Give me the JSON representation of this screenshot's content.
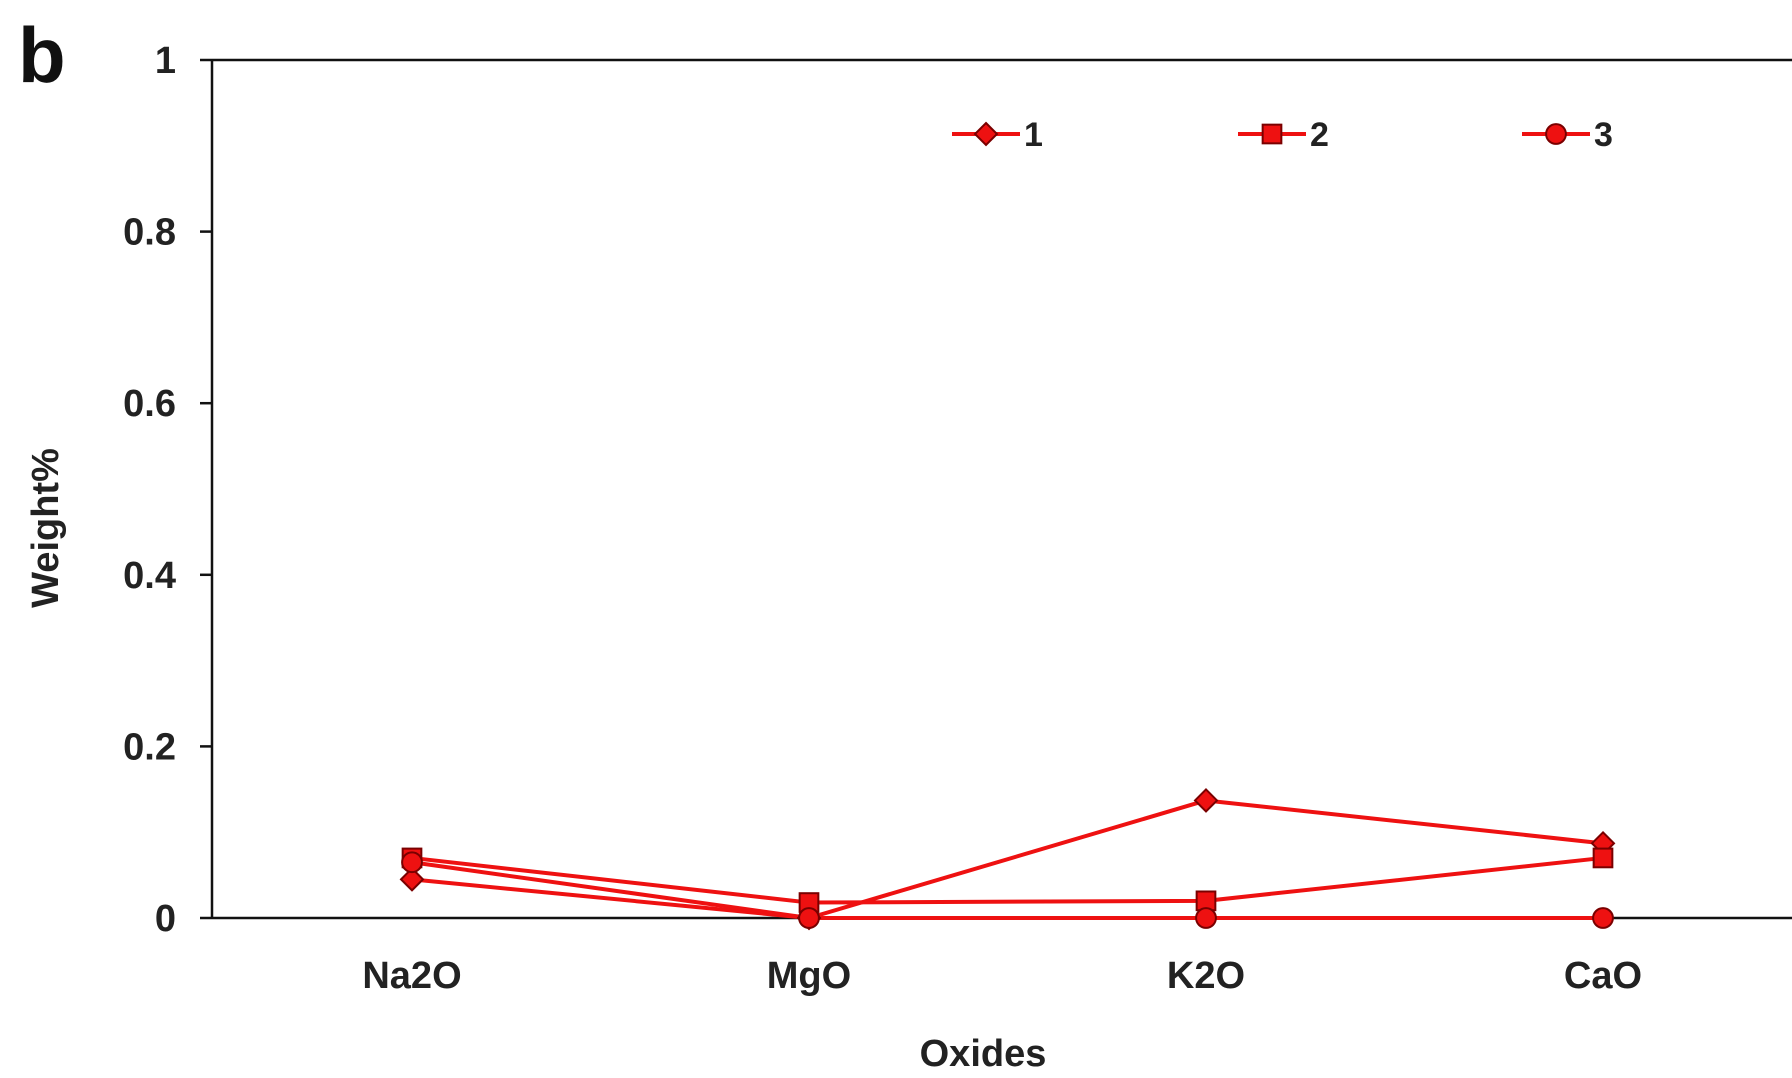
{
  "panel_label": "b",
  "colors": {
    "line": "#ee1111",
    "marker_fill": "#ee1111",
    "marker_stroke": "#7a0000",
    "axis": "#111111",
    "text": "#222222"
  },
  "chart_data": {
    "type": "line",
    "title": "",
    "xlabel": "Oxides",
    "ylabel": "Weight%",
    "categories": [
      "Na2O",
      "MgO",
      "K2O",
      "CaO"
    ],
    "ylim": [
      0,
      1
    ],
    "yticks": [
      0,
      0.2,
      0.4,
      0.6,
      0.8,
      1
    ],
    "ytick_labels": [
      "0",
      "0.2",
      "0.4",
      "0.6",
      "0.8",
      "1"
    ],
    "grid": false,
    "legend_position": "top-right",
    "series": [
      {
        "name": "1",
        "marker": "diamond",
        "values": [
          0.045,
          0.0,
          0.137,
          0.087
        ]
      },
      {
        "name": "2",
        "marker": "square",
        "values": [
          0.07,
          0.018,
          0.02,
          0.07
        ]
      },
      {
        "name": "3",
        "marker": "circle",
        "values": [
          0.065,
          0.0,
          0.0,
          0.0
        ]
      }
    ]
  }
}
